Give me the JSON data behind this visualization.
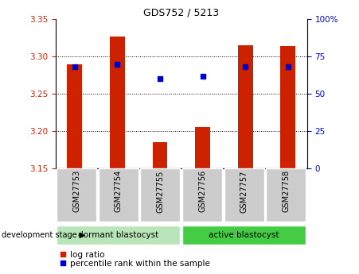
{
  "title": "GDS752 / 5213",
  "samples": [
    "GSM27753",
    "GSM27754",
    "GSM27755",
    "GSM27756",
    "GSM27757",
    "GSM27758"
  ],
  "log_ratio": [
    3.29,
    3.327,
    3.185,
    3.205,
    3.315,
    3.314
  ],
  "percentile_rank": [
    68,
    70,
    60,
    62,
    68,
    68
  ],
  "baseline": 3.15,
  "ylim_left": [
    3.15,
    3.35
  ],
  "ylim_right": [
    0,
    100
  ],
  "yticks_left": [
    3.15,
    3.2,
    3.25,
    3.3,
    3.35
  ],
  "yticks_right": [
    0,
    25,
    50,
    75,
    100
  ],
  "grid_lines": [
    3.2,
    3.25,
    3.3
  ],
  "bar_color": "#cc2200",
  "marker_color": "#0000cc",
  "dormant_color": "#b8e6b8",
  "active_color": "#44cc44",
  "tick_bg_color": "#cccccc",
  "dormant_label": "dormant blastocyst",
  "active_label": "active blastocyst",
  "dev_stage_label": "development stage",
  "legend_log_ratio": "log ratio",
  "legend_percentile": "percentile rank within the sample",
  "title_color": "#000000",
  "left_tick_color": "#cc2200",
  "right_tick_color": "#0000cc",
  "bar_width": 0.35
}
